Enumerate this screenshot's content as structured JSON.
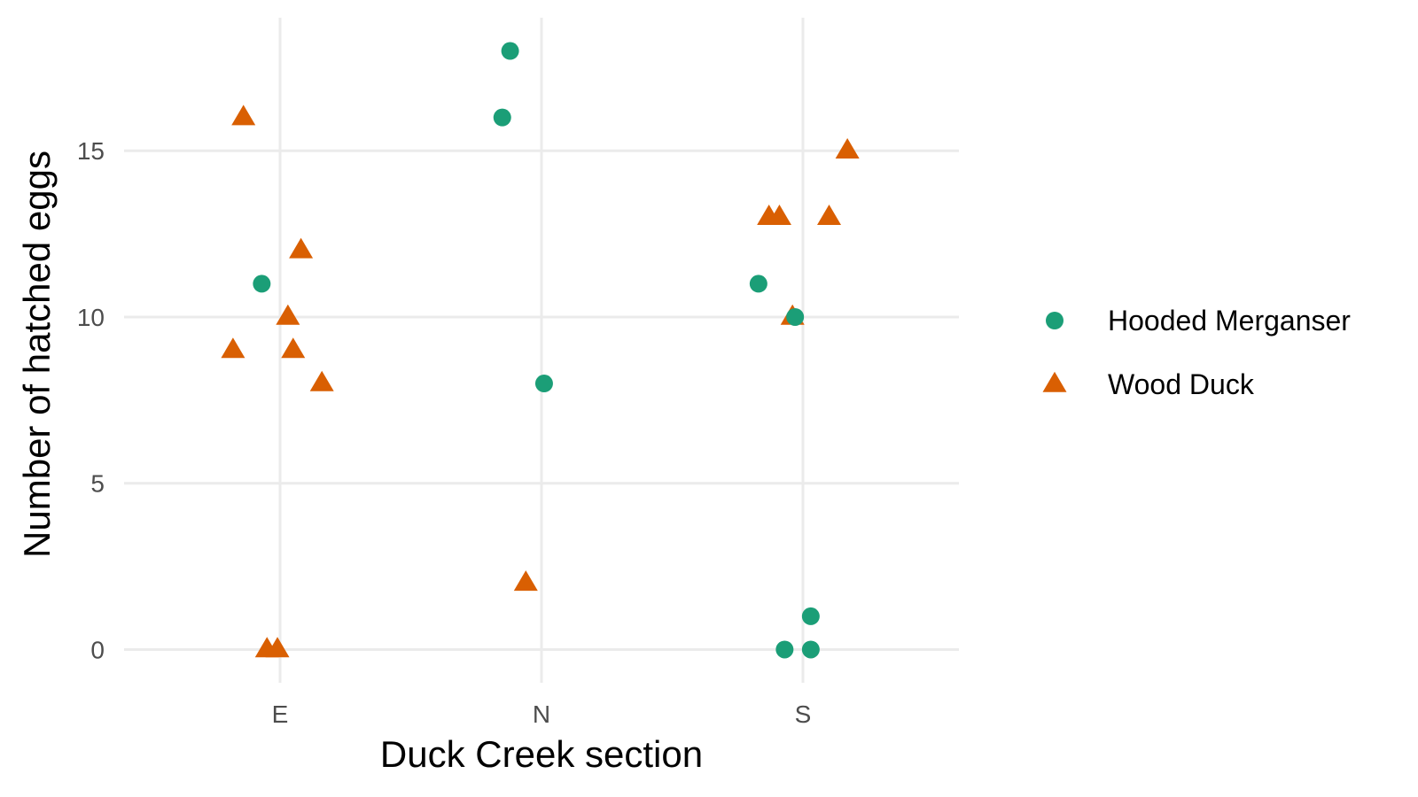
{
  "chart_data": {
    "type": "scatter",
    "title": "",
    "xlabel": "Duck Creek section",
    "ylabel": "Number of hatched eggs",
    "categories": [
      "E",
      "N",
      "S"
    ],
    "ylim": [
      -1,
      19
    ],
    "yticks": [
      0,
      5,
      10,
      15
    ],
    "grid": true,
    "legend_position": "right",
    "series": [
      {
        "name": "Hooded Merganser",
        "shape": "circle",
        "color": "#1b9e77",
        "points": [
          {
            "x": "E",
            "jitter": -0.07,
            "y": 11
          },
          {
            "x": "N",
            "jitter": -0.15,
            "y": 16
          },
          {
            "x": "N",
            "jitter": -0.12,
            "y": 18
          },
          {
            "x": "N",
            "jitter": 0.01,
            "y": 8
          },
          {
            "x": "S",
            "jitter": -0.17,
            "y": 11
          },
          {
            "x": "S",
            "jitter": -0.03,
            "y": 10
          },
          {
            "x": "S",
            "jitter": -0.07,
            "y": 0
          },
          {
            "x": "S",
            "jitter": 0.03,
            "y": 0
          },
          {
            "x": "S",
            "jitter": 0.03,
            "y": 1
          }
        ]
      },
      {
        "name": "Wood Duck",
        "shape": "triangle",
        "color": "#d95f02",
        "points": [
          {
            "x": "E",
            "jitter": -0.14,
            "y": 16
          },
          {
            "x": "E",
            "jitter": 0.08,
            "y": 12
          },
          {
            "x": "E",
            "jitter": 0.03,
            "y": 10
          },
          {
            "x": "E",
            "jitter": -0.18,
            "y": 9
          },
          {
            "x": "E",
            "jitter": 0.05,
            "y": 9
          },
          {
            "x": "E",
            "jitter": 0.16,
            "y": 8
          },
          {
            "x": "E",
            "jitter": -0.05,
            "y": 0
          },
          {
            "x": "E",
            "jitter": -0.01,
            "y": 0
          },
          {
            "x": "N",
            "jitter": -0.06,
            "y": 2
          },
          {
            "x": "S",
            "jitter": -0.13,
            "y": 13
          },
          {
            "x": "S",
            "jitter": -0.09,
            "y": 13
          },
          {
            "x": "S",
            "jitter": 0.1,
            "y": 13
          },
          {
            "x": "S",
            "jitter": 0.17,
            "y": 15
          },
          {
            "x": "S",
            "jitter": -0.04,
            "y": 10
          }
        ]
      }
    ]
  }
}
